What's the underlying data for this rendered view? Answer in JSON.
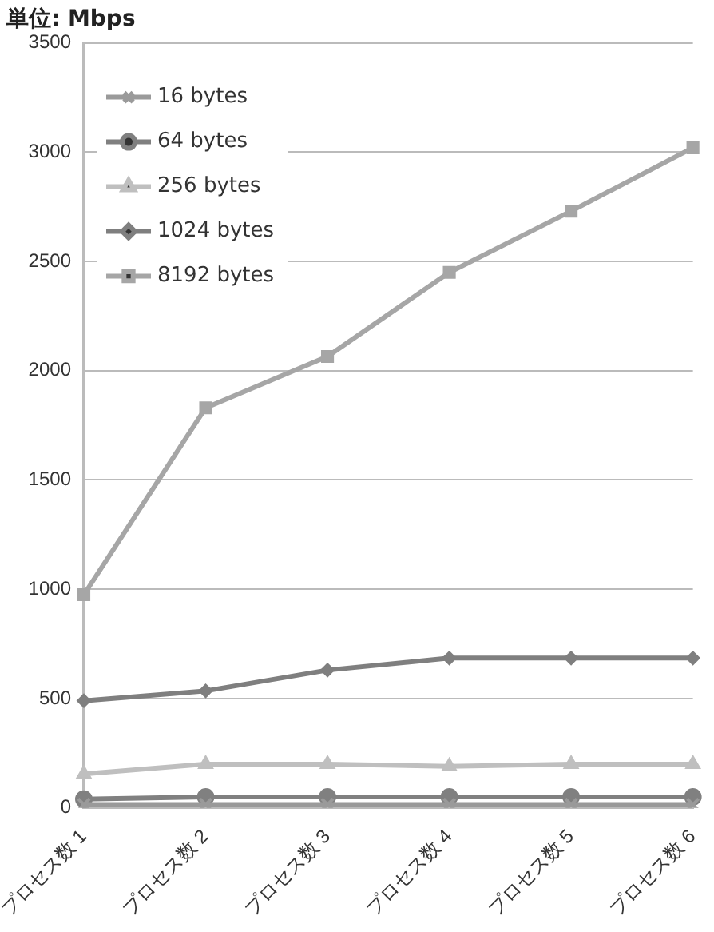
{
  "chart_data": {
    "type": "line",
    "title": "単位: Mbps",
    "categories": [
      "プロセス数 1",
      "プロセス数 2",
      "プロセス数 3",
      "プロセス数 4",
      "プロセス数 5",
      "プロセス数 6"
    ],
    "series": [
      {
        "name": "16 bytes",
        "color": "#9a9a9a",
        "marker": "cross",
        "values": [
          15,
          15,
          15,
          15,
          15,
          15
        ]
      },
      {
        "name": "64 bytes",
        "color": "#808080",
        "marker": "circle",
        "values": [
          40,
          50,
          50,
          50,
          50,
          50
        ]
      },
      {
        "name": "256 bytes",
        "color": "#bfbfbf",
        "marker": "triangle",
        "values": [
          155,
          200,
          200,
          190,
          200,
          200
        ]
      },
      {
        "name": "1024 bytes",
        "color": "#7f7f7f",
        "marker": "diamond",
        "values": [
          490,
          535,
          630,
          685,
          685,
          685
        ]
      },
      {
        "name": "8192 bytes",
        "color": "#a6a6a6",
        "marker": "square",
        "values": [
          975,
          1830,
          2065,
          2450,
          2730,
          3020
        ]
      }
    ],
    "ylim": [
      0,
      3500
    ],
    "yticks": [
      0,
      500,
      1000,
      1500,
      2000,
      2500,
      3000,
      3500
    ],
    "grid": "y",
    "legend": "top left",
    "line_style": "solid"
  }
}
